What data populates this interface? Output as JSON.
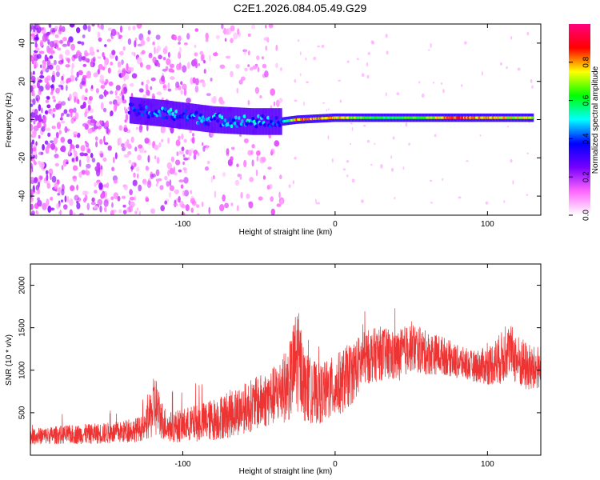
{
  "title": "C2E1.2026.084.05.49.G29",
  "chart_data": [
    {
      "type": "heatmap",
      "xlabel": "Height of straight line (km)",
      "ylabel": "Frequency (Hz)",
      "xlim": [
        -200,
        135
      ],
      "ylim": [
        -50,
        50
      ],
      "xticks": [
        -100,
        0,
        100
      ],
      "yticks": [
        -40,
        -20,
        0,
        20,
        40
      ],
      "colorbar": {
        "label": "Normalized spectral amplitude",
        "range": [
          0,
          1
        ],
        "ticks": [
          "0.0",
          "0.2",
          "0.4",
          "0.6",
          "0.8"
        ],
        "colormap": [
          "#ffffff",
          "#ff66ff",
          "#7700ff",
          "#0000ff",
          "#00ffff",
          "#00ff00",
          "#ffff00",
          "#ff0000",
          "#ff0080"
        ]
      },
      "noise_region": {
        "x": [
          -200,
          -35
        ],
        "frequency": [
          -50,
          50
        ],
        "amplitude": [
          0.05,
          0.25
        ]
      },
      "signal_ridge": [
        {
          "x": -135,
          "frequency": 5,
          "amplitude": 0.35
        },
        {
          "x": -110,
          "frequency": 3,
          "amplitude": 0.45
        },
        {
          "x": -80,
          "frequency": 0,
          "amplitude": 0.42
        },
        {
          "x": -55,
          "frequency": -1,
          "amplitude": 0.45
        },
        {
          "x": -35,
          "frequency": -1,
          "amplitude": 0.4
        },
        {
          "x": -25,
          "frequency": 0,
          "amplitude": 0.85
        },
        {
          "x": 0,
          "frequency": 1,
          "amplitude": 0.8
        },
        {
          "x": 30,
          "frequency": 1,
          "amplitude": 0.6
        },
        {
          "x": 60,
          "frequency": 1,
          "amplitude": 0.7
        },
        {
          "x": 80,
          "frequency": 1,
          "amplitude": 0.9
        },
        {
          "x": 100,
          "frequency": 1,
          "amplitude": 0.8
        },
        {
          "x": 130,
          "frequency": 1,
          "amplitude": 0.75
        }
      ]
    },
    {
      "type": "line",
      "xlabel": "Height of straight line (km)",
      "ylabel": "SNR (10 * v/v)",
      "xlim": [
        -200,
        135
      ],
      "ylim": [
        0,
        2250
      ],
      "xticks": [
        -100,
        0,
        100
      ],
      "yticks": [
        500,
        1000,
        1500,
        2000
      ],
      "color": "#ee3333",
      "series": [
        {
          "x": [
            -200,
            -180,
            -160,
            -140,
            -125,
            -118,
            -115,
            -110,
            -100,
            -90,
            -80,
            -70,
            -60,
            -50,
            -40,
            -30,
            -25,
            -22,
            -20,
            -15,
            -10,
            0,
            10,
            20,
            30,
            40,
            50,
            60,
            70,
            80,
            90,
            100,
            110,
            115,
            120,
            130,
            135
          ],
          "y": [
            220,
            240,
            250,
            270,
            320,
            600,
            450,
            330,
            350,
            380,
            420,
            480,
            550,
            620,
            700,
            850,
            1150,
            1000,
            800,
            750,
            720,
            800,
            950,
            1150,
            1200,
            1150,
            1280,
            1200,
            1180,
            1100,
            1050,
            1050,
            1150,
            1250,
            1100,
            1000,
            1050
          ],
          "envelope": [
            90,
            110,
            120,
            130,
            150,
            400,
            250,
            180,
            200,
            220,
            250,
            280,
            300,
            320,
            350,
            450,
            650,
            500,
            420,
            380,
            350,
            380,
            380,
            320,
            320,
            300,
            300,
            260,
            230,
            200,
            180,
            230,
            320,
            300,
            320,
            280,
            250
          ]
        }
      ]
    }
  ]
}
